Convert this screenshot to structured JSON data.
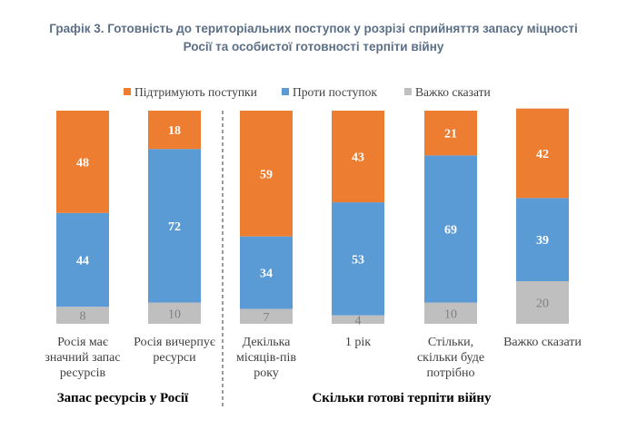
{
  "header": {
    "title_line1": "Графік 3. Готовність до територіальних поступок у розрізі сприйняття запасу міцності",
    "title_line2": "Росії та особистої готовності терпіти війну"
  },
  "chart_data": {
    "type": "bar",
    "stacked": true,
    "percent": true,
    "categories": [
      [
        "Росія має",
        "значний запас",
        "ресурсів"
      ],
      [
        "Росія вичерпує",
        "ресурси"
      ],
      [
        "Декілька",
        "місяців-пів",
        "року"
      ],
      [
        "1 рік"
      ],
      [
        "Стільки,",
        "скільки буде",
        "потрібно"
      ],
      [
        "Важко сказати"
      ]
    ],
    "series": [
      {
        "name": "Важко сказати",
        "color": "#bfbfbf",
        "values": [
          8,
          10,
          7,
          4,
          10,
          20
        ]
      },
      {
        "name": "Проти поступок",
        "color": "#5b9bd5",
        "values": [
          44,
          72,
          34,
          53,
          69,
          39
        ]
      },
      {
        "name": "Підтримують поступки",
        "color": "#ed7d31",
        "values": [
          48,
          18,
          59,
          43,
          21,
          42
        ]
      }
    ],
    "legend": [
      "Підтримують поступки",
      "Проти поступок",
      "Важко сказати"
    ],
    "legend_position": "top",
    "groups": [
      {
        "label": "Запас ресурсів у Росії",
        "categories": [
          0,
          1
        ]
      },
      {
        "label": "Скільки готові терпіти війну",
        "categories": [
          2,
          3,
          4,
          5
        ]
      }
    ],
    "ylim": [
      0,
      100
    ],
    "grid": false
  }
}
